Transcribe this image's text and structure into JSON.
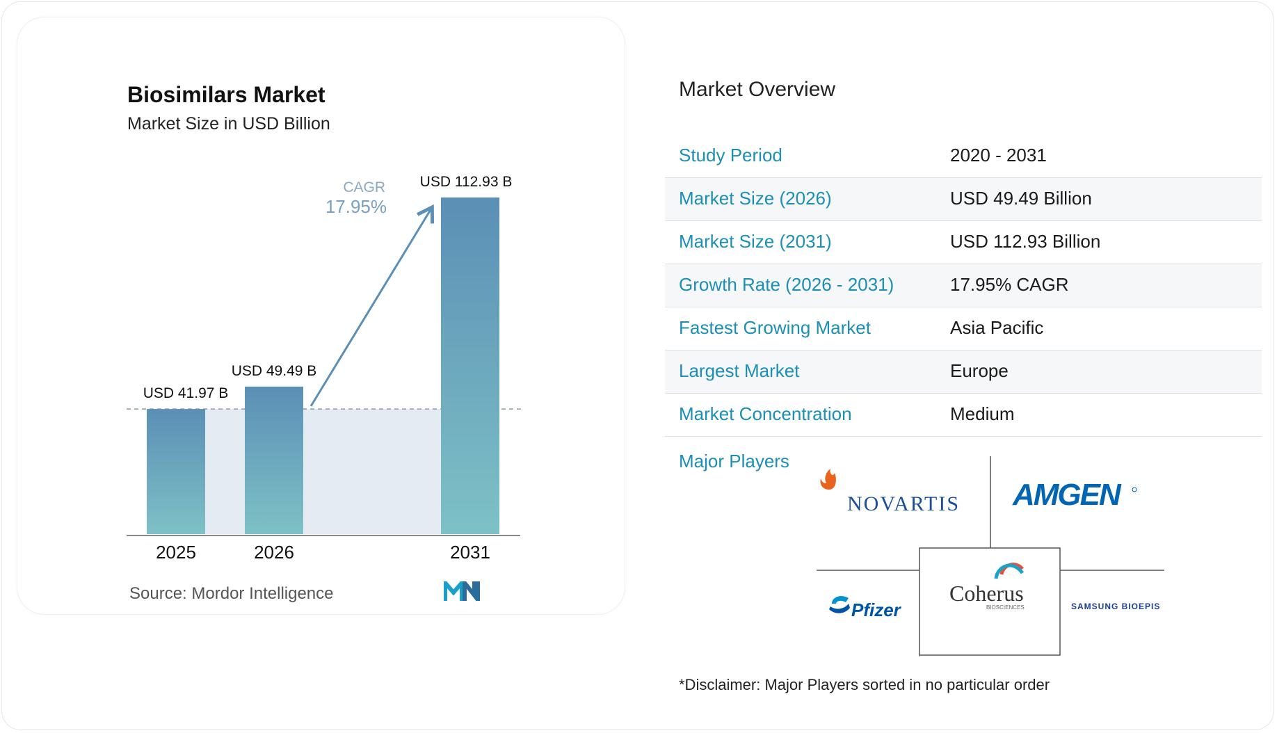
{
  "chart_data": {
    "type": "bar",
    "title": "Biosimilars Market",
    "subtitle": "Market Size in USD Billion",
    "categories": [
      "2025",
      "2026",
      "2031"
    ],
    "values": [
      41.97,
      49.49,
      112.93
    ],
    "data_labels": [
      "USD 41.97 B",
      "USD 49.49 B",
      "USD 112.93 B"
    ],
    "cagr_label": "CAGR",
    "cagr_value": "17.95%",
    "ylim": [
      0,
      112.93
    ],
    "bar_colors": {
      "top": "#5b8fb5",
      "bottom": "#7ec1c6"
    },
    "grid": false
  },
  "source": {
    "label": "Source:",
    "name": "Mordor Intelligence"
  },
  "overview": {
    "title": "Market Overview",
    "rows": [
      {
        "label": "Study Period",
        "value": "2020 - 2031"
      },
      {
        "label": "Market Size (2026)",
        "value": "USD 49.49 Billion"
      },
      {
        "label": "Market Size (2031)",
        "value": "USD 112.93 Billion"
      },
      {
        "label": "Growth Rate (2026 - 2031)",
        "value": "17.95% CAGR"
      },
      {
        "label": "Fastest Growing Market",
        "value": "Asia Pacific"
      },
      {
        "label": "Largest Market",
        "value": "Europe"
      },
      {
        "label": "Market Concentration",
        "value": "Medium"
      }
    ]
  },
  "players": {
    "title": "Major Players",
    "logos": [
      {
        "name": "NOVARTIS",
        "icon": "novartis-flame-icon"
      },
      {
        "name": "AMGEN",
        "icon": "amgen-wordmark"
      },
      {
        "name": "Pfizer",
        "icon": "pfizer-pill-icon"
      },
      {
        "name": "Coherus",
        "sub": "BIOSCIENCES",
        "icon": "coherus-arc-icon"
      },
      {
        "name": "SAMSUNG BIOEPIS",
        "icon": "samsung-bioepis-wordmark"
      }
    ]
  },
  "disclaimer": "*Disclaimer: Major Players sorted in no particular order",
  "colors": {
    "accent": "#1c8fb5",
    "arrow": "#5b8fb5",
    "shade": "#e4ebf3"
  }
}
